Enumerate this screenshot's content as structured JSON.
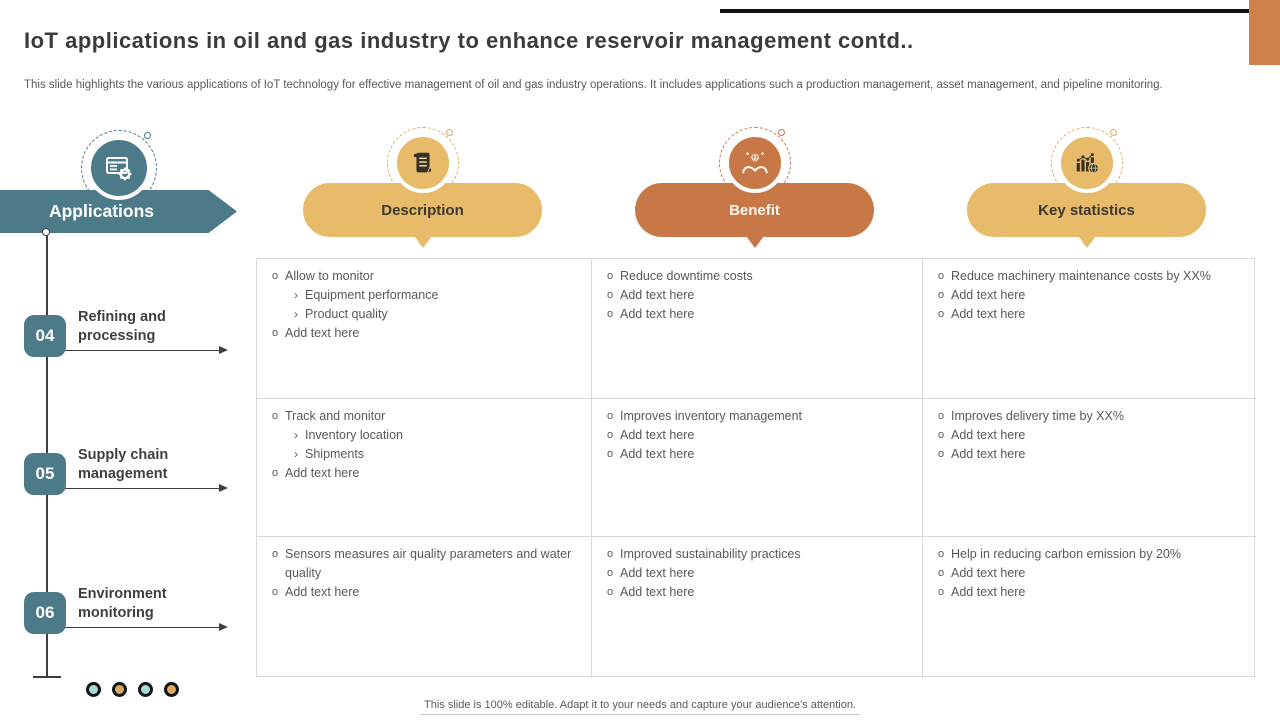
{
  "slide": {
    "title": "IoT applications in oil and gas industry to enhance reservoir management contd..",
    "subtitle": "This slide highlights the various applications of IoT technology for effective management of oil and gas industry operations. It includes applications such a production management, asset management, and pipeline monitoring.",
    "footer": "This slide is 100% editable. Adapt it to your needs and capture your audience's attention."
  },
  "colors": {
    "teal": "#4d7a89",
    "yellow": "#e7bb69",
    "orange": "#c87846",
    "corner_accent": "#cd8049",
    "body_text": "#595959",
    "heading_text": "#3b3b3b",
    "table_border": "#d9d9d9",
    "dot_blue": "#a6d9e0",
    "dot_gold": "#dfa95e"
  },
  "applications_header": {
    "label": "Applications",
    "icon": "window-gear-icon"
  },
  "columns": [
    {
      "key": "description",
      "label": "Description",
      "style": "yellow",
      "icon": "scroll-icon"
    },
    {
      "key": "benefit",
      "label": "Benefit",
      "style": "orange",
      "icon": "hands-diamond-icon"
    },
    {
      "key": "statistics",
      "label": "Key statistics",
      "style": "yellow",
      "icon": "bar-chart-icon"
    }
  ],
  "rows": [
    {
      "number": "04",
      "label": "Refining and processing",
      "cells": {
        "description": [
          {
            "text": "Allow to monitor",
            "subs": [
              "Equipment performance",
              "Product quality"
            ]
          },
          {
            "text": "Add text here",
            "subs": []
          }
        ],
        "benefit": [
          {
            "text": "Reduce downtime costs",
            "subs": []
          },
          {
            "text": "Add text here",
            "subs": []
          },
          {
            "text": "Add text here",
            "subs": []
          }
        ],
        "statistics": [
          {
            "text": "Reduce machinery maintenance costs by XX%",
            "subs": []
          },
          {
            "text": "Add text here",
            "subs": []
          },
          {
            "text": "Add text here",
            "subs": []
          }
        ]
      }
    },
    {
      "number": "05",
      "label": "Supply chain management",
      "cells": {
        "description": [
          {
            "text": "Track and monitor",
            "subs": [
              "Inventory location",
              "Shipments"
            ]
          },
          {
            "text": "Add text here",
            "subs": []
          }
        ],
        "benefit": [
          {
            "text": "Improves inventory management",
            "subs": []
          },
          {
            "text": "Add text here",
            "subs": []
          },
          {
            "text": "Add text here",
            "subs": []
          }
        ],
        "statistics": [
          {
            "text": "Improves delivery time by XX%",
            "subs": []
          },
          {
            "text": "Add text here",
            "subs": []
          },
          {
            "text": "Add text here",
            "subs": []
          }
        ]
      }
    },
    {
      "number": "06",
      "label": "Environment monitoring",
      "cells": {
        "description": [
          {
            "text": "Sensors measures air quality parameters and water quality",
            "subs": []
          },
          {
            "text": "Add text here",
            "subs": []
          }
        ],
        "benefit": [
          {
            "text": "Improved sustainability practices",
            "subs": []
          },
          {
            "text": "Add text here",
            "subs": []
          },
          {
            "text": "Add text here",
            "subs": []
          }
        ],
        "statistics": [
          {
            "text": "Help in reducing carbon emission by 20%",
            "subs": []
          },
          {
            "text": "Add text here",
            "subs": []
          },
          {
            "text": "Add text here",
            "subs": []
          }
        ]
      }
    }
  ],
  "pagination_dots": [
    "blue",
    "gold",
    "blue",
    "gold"
  ],
  "bullet_markers": {
    "level1": "o",
    "level2": "›"
  }
}
